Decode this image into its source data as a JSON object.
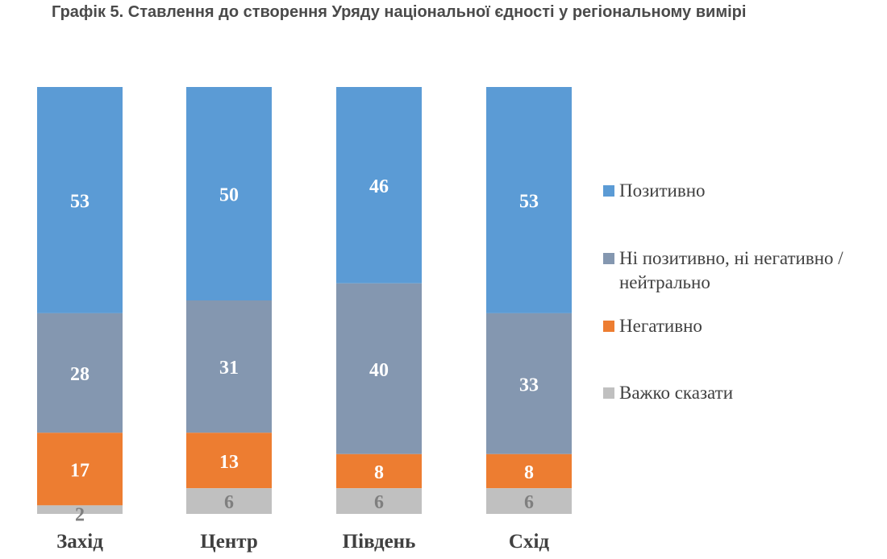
{
  "title": "Графік 5. Ставлення до створення Уряду національної єдності у регіональному вимірі",
  "colors": {
    "positive": "#5b9bd5",
    "neutral": "#8497b0",
    "negative": "#ed7d31",
    "hard": "#c0c0c0"
  },
  "legend": [
    {
      "key": "positive",
      "label": "Позитивно"
    },
    {
      "key": "neutral",
      "label": "Ні позитивно, ні негативно / нейтрально"
    },
    {
      "key": "negative",
      "label": "Негативно"
    },
    {
      "key": "hard",
      "label": "Важко сказати"
    }
  ],
  "chart_data": {
    "type": "bar",
    "stacked": true,
    "orientation": "vertical",
    "legend_position": "right",
    "grid": false,
    "categories": [
      "Захід",
      "Центр",
      "Південь",
      "Схід"
    ],
    "series": [
      {
        "name": "Позитивно",
        "key": "positive",
        "values": [
          53,
          50,
          46,
          53
        ]
      },
      {
        "name": "Ні позитивно, ні негативно / нейтрально",
        "key": "neutral",
        "values": [
          28,
          31,
          40,
          33
        ]
      },
      {
        "name": "Негативно",
        "key": "negative",
        "values": [
          17,
          13,
          8,
          8
        ]
      },
      {
        "name": "Важко сказати",
        "key": "hard",
        "values": [
          2,
          6,
          6,
          6
        ]
      }
    ]
  }
}
